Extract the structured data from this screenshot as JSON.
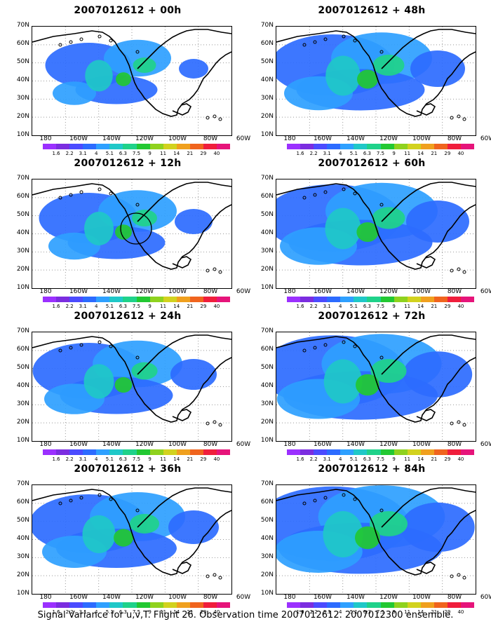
{
  "panels": [
    {
      "title": "2007012612 + 00h",
      "intensity": 0.55,
      "coverage": 0.35
    },
    {
      "title": "2007012612 + 48h",
      "intensity": 0.75,
      "coverage": 0.65
    },
    {
      "title": "2007012612 + 12h",
      "intensity": 0.6,
      "coverage": 0.45
    },
    {
      "title": "2007012612 + 60h",
      "intensity": 0.78,
      "coverage": 0.75
    },
    {
      "title": "2007012612 + 24h",
      "intensity": 0.62,
      "coverage": 0.55
    },
    {
      "title": "2007012612 + 72h",
      "intensity": 0.85,
      "coverage": 0.82
    },
    {
      "title": "2007012612 + 36h",
      "intensity": 0.7,
      "coverage": 0.6
    },
    {
      "title": "2007012612 + 84h",
      "intensity": 0.9,
      "coverage": 0.88
    }
  ],
  "lat_labels": [
    "70N",
    "60N",
    "50N",
    "40N",
    "30N",
    "20N",
    "10N"
  ],
  "lon_labels": [
    "180",
    "160W",
    "140W",
    "120W",
    "100W",
    "80W",
    "60W"
  ],
  "colorbar": {
    "labels": [
      "1.6",
      "2.2",
      "3.1",
      "4",
      "5.1",
      "6.3",
      "7.5",
      "9",
      "11",
      "14",
      "21",
      "29",
      "40"
    ],
    "colors": [
      "#9b30ff",
      "#7b2de0",
      "#4b4bff",
      "#2c6bff",
      "#2ea0ff",
      "#1fc8c8",
      "#1fd28a",
      "#22c832",
      "#8fd21e",
      "#d2d21e",
      "#f0a01e",
      "#f0641e",
      "#f01e3c",
      "#e6147a"
    ]
  },
  "caption": "Signal Variance for u,v,T. Flight 26. Observation time 2007012612. 2007012300 ensemble."
}
